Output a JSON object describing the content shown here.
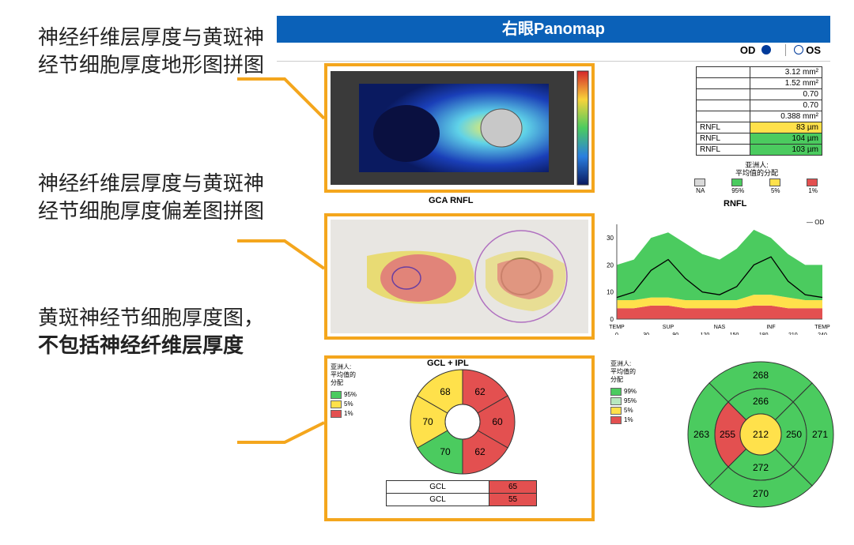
{
  "header": {
    "title": "右眼Panomap"
  },
  "eye_toggle": {
    "od": "OD",
    "os": "OS"
  },
  "annotations": {
    "a1": "神经纤维层厚度与黄斑神经节细胞厚度地形图拼图",
    "a2": "神经纤维层厚度与黄斑神经节细胞厚度偏差图拼图",
    "a3a": "黄斑神经节细胞厚度图，",
    "a3b": "不包括神经纤维层厚度"
  },
  "small_table": {
    "rows": [
      {
        "v": "3.12 mm²",
        "cls": ""
      },
      {
        "v": "1.52 mm²",
        "cls": ""
      },
      {
        "v": "0.70",
        "cls": ""
      },
      {
        "v": "0.70",
        "cls": ""
      },
      {
        "v": "0.388 mm²",
        "cls": ""
      },
      {
        "k": "RNFL",
        "v": "83 µm",
        "cls": "yellowcell"
      },
      {
        "k": "RNFL",
        "v": "104 µm",
        "cls": "greencell"
      },
      {
        "k": "RNFL",
        "v": "103 µm",
        "cls": "greencell"
      }
    ]
  },
  "legend_top": {
    "title": "亚洲人:\n平均值的分配",
    "labels": [
      "NA",
      "95%",
      "5%",
      "1%"
    ],
    "colors": [
      "#d9d9d9",
      "#4bcb5f",
      "#ffe14b",
      "#e35050"
    ]
  },
  "labels": {
    "gca": "GCA  RNFL",
    "rnfl": "RNFL",
    "gcl_title": "GCL + IPL",
    "od_series": "OD"
  },
  "tsnit": {
    "type": "line",
    "xlabels": [
      "TEMP",
      "SUP",
      "NAS",
      "INF",
      "TEMP"
    ],
    "xticks": [
      0,
      30,
      90,
      120,
      150,
      180,
      210,
      240
    ],
    "ylim": [
      0,
      35
    ],
    "ytick_step": 10,
    "normal_upper": [
      20,
      22,
      30,
      32,
      28,
      24,
      22,
      26,
      33,
      30,
      24,
      20,
      20
    ],
    "normal_lower": [
      7,
      7,
      8,
      8,
      7,
      7,
      7,
      7,
      9,
      9,
      8,
      7,
      7
    ],
    "warn_lower": [
      4,
      4,
      5,
      5,
      4,
      4,
      4,
      4,
      5,
      5,
      4,
      4,
      4
    ],
    "series": [
      8,
      10,
      18,
      22,
      15,
      10,
      9,
      12,
      20,
      23,
      14,
      9,
      8
    ],
    "colors": {
      "normal": "#4bcb5f",
      "warn": "#ffe14b",
      "abnormal": "#e35050",
      "line": "#000",
      "bg": "#fff",
      "axis": "#555"
    }
  },
  "gcl_donut": {
    "type": "pie-sectors",
    "sectors": [
      {
        "label": "62",
        "color": "#e35050"
      },
      {
        "label": "60",
        "color": "#e35050"
      },
      {
        "label": "62",
        "color": "#e35050"
      },
      {
        "label": "70",
        "color": "#4bcb5f"
      },
      {
        "label": "70",
        "color": "#ffe14b"
      },
      {
        "label": "68",
        "color": "#ffe14b"
      }
    ],
    "center_color": "#fff"
  },
  "rnfl_donut": {
    "type": "multi-ring",
    "outer": [
      {
        "label": "268",
        "color": "#4bcb5f"
      },
      {
        "label": "271",
        "color": "#4bcb5f"
      },
      {
        "label": "270",
        "color": "#4bcb5f"
      },
      {
        "label": "263",
        "color": "#4bcb5f"
      }
    ],
    "inner": [
      {
        "label": "266",
        "color": "#4bcb5f"
      },
      {
        "label": "250",
        "color": "#4bcb5f"
      },
      {
        "label": "272",
        "color": "#4bcb5f"
      },
      {
        "label": "255",
        "color": "#e35050"
      }
    ],
    "center": {
      "label": "212",
      "color": "#ffe14b"
    }
  },
  "gcl_table": {
    "rows": [
      [
        "GCL",
        "65"
      ],
      [
        "GCL",
        "55"
      ]
    ],
    "cell_colors": [
      "redcell",
      "redcell"
    ]
  },
  "legend_left": {
    "title": "亚洲人:\n平均值的\n分配",
    "items": [
      {
        "c": "#4bcb5f",
        "t": "95%"
      },
      {
        "c": "#ffe14b",
        "t": "5%"
      },
      {
        "c": "#e35050",
        "t": "1%"
      }
    ]
  },
  "legend_right2": {
    "title": "亚洲人:\n平均值的\n分配",
    "items": [
      {
        "c": "#4bcb5f",
        "t": "99%"
      },
      {
        "c": "#b7e8bf",
        "t": "95%"
      },
      {
        "c": "#ffe14b",
        "t": "5%"
      },
      {
        "c": "#e35050",
        "t": "1%"
      }
    ]
  },
  "colors": {
    "accent": "#f4a61d",
    "header": "#0b61b8",
    "border": "#333"
  }
}
